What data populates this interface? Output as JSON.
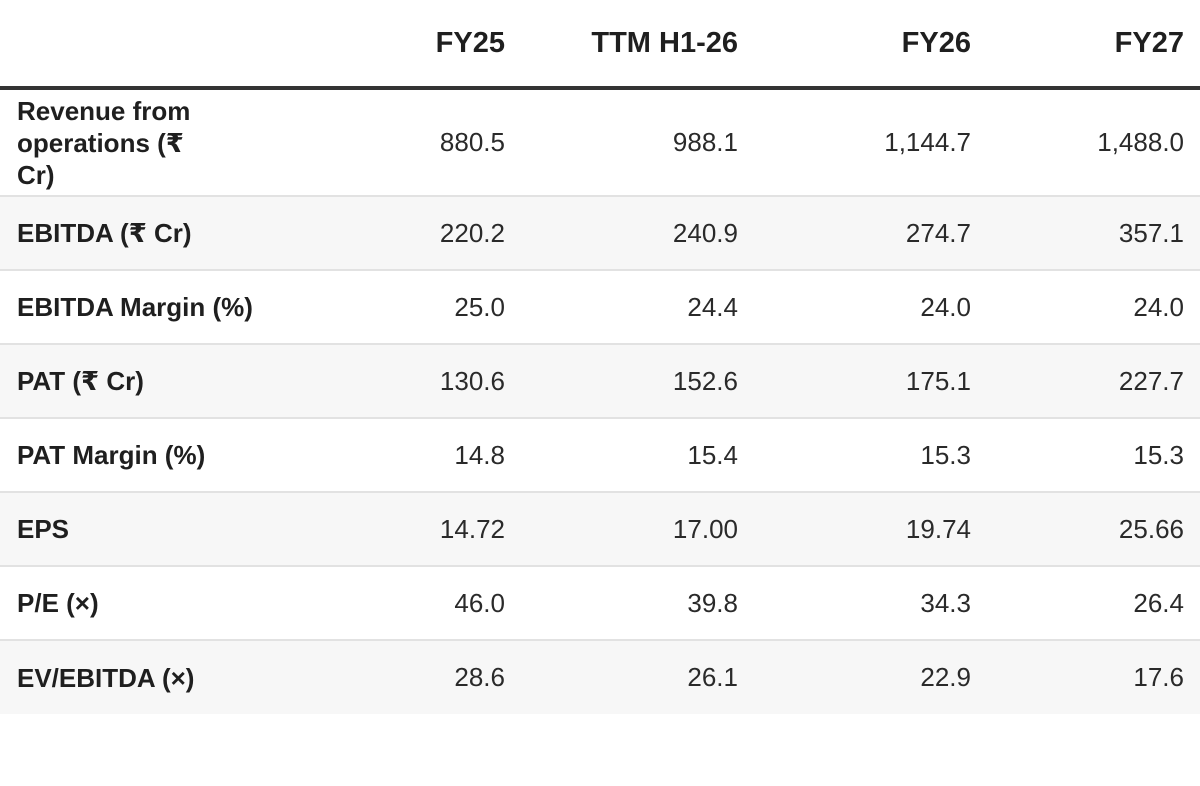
{
  "table": {
    "columns": [
      "",
      "FY25",
      "TTM H1-26",
      "FY26",
      "FY27"
    ],
    "rows": [
      {
        "label": "Revenue from operations (₹ Cr)",
        "values": [
          "880.5",
          "988.1",
          "1,144.7",
          "1,488.0"
        ]
      },
      {
        "label": "EBITDA (₹ Cr)",
        "values": [
          "220.2",
          "240.9",
          "274.7",
          "357.1"
        ]
      },
      {
        "label": "EBITDA Margin (%)",
        "values": [
          "25.0",
          "24.4",
          "24.0",
          "24.0"
        ]
      },
      {
        "label": "PAT (₹ Cr)",
        "values": [
          "130.6",
          "152.6",
          "175.1",
          "227.7"
        ]
      },
      {
        "label": "PAT Margin (%)",
        "values": [
          "14.8",
          "15.4",
          "15.3",
          "15.3"
        ]
      },
      {
        "label": "EPS",
        "values": [
          "14.72",
          "17.00",
          "19.74",
          "25.66"
        ]
      },
      {
        "label": "P/E (×)",
        "values": [
          "46.0",
          "39.8",
          "34.3",
          "26.4"
        ]
      },
      {
        "label": "EV/EBITDA (×)",
        "values": [
          "28.6",
          "26.1",
          "22.9",
          "17.6"
        ]
      }
    ]
  }
}
